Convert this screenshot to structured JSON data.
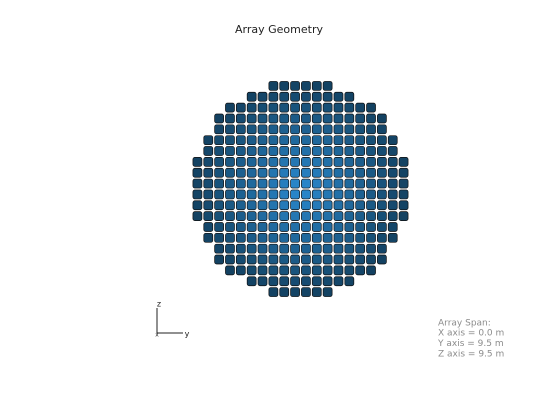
{
  "title": "Array Geometry",
  "array": {
    "rows": [
      6,
      10,
      14,
      16,
      16,
      18,
      18,
      20,
      20,
      20,
      20,
      20,
      20,
      18,
      18,
      16,
      16,
      14,
      10,
      6
    ],
    "center_color": "#2a8ad0",
    "edge_color": "#123f5e"
  },
  "triad": {
    "z": "z",
    "y": "y",
    "x": "x"
  },
  "span": {
    "heading": "Array Span:",
    "lines": [
      "X axis = 0.0 m",
      "Y axis = 9.5 m",
      "Z axis = 9.5 m"
    ]
  }
}
